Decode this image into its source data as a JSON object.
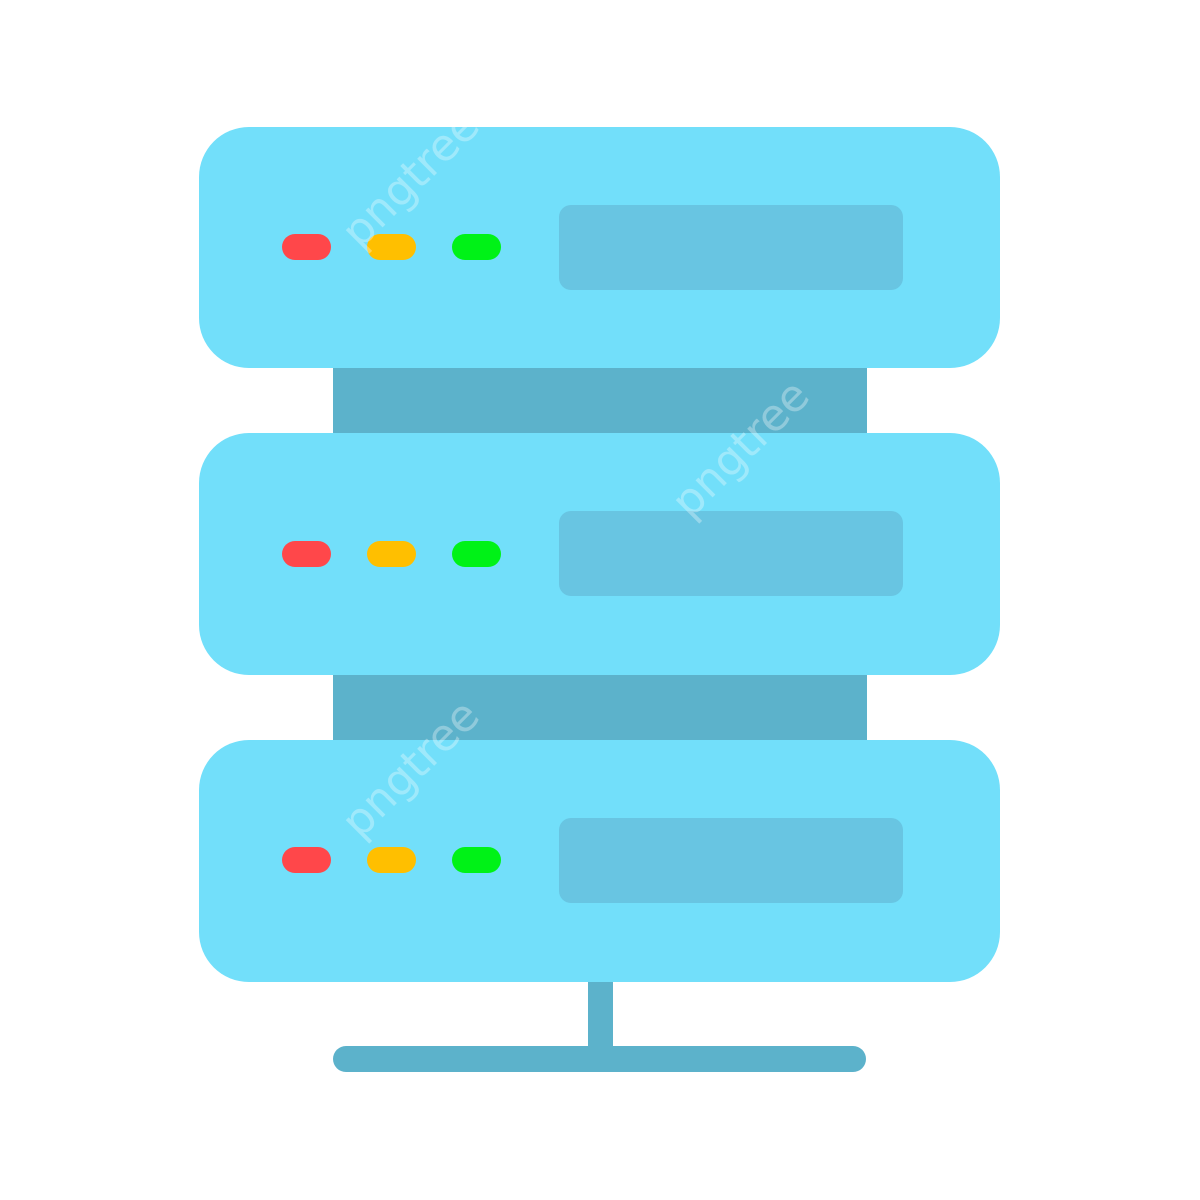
{
  "icon": {
    "name": "server-rack-icon",
    "colors": {
      "background": "#ffffff",
      "unit_body": "#72dffa",
      "display_panel": "#68c5e2",
      "spine": "#5cb2cb",
      "stand": "#5cb2cb",
      "led_red": "#ff474a",
      "led_amber": "#ffbf00",
      "led_green": "#00f217"
    },
    "units": [
      {
        "name": "server-unit-top",
        "leds": [
          "led_red",
          "led_amber",
          "led_green"
        ]
      },
      {
        "name": "server-unit-middle",
        "leds": [
          "led_red",
          "led_amber",
          "led_green"
        ]
      },
      {
        "name": "server-unit-bottom",
        "leds": [
          "led_red",
          "led_amber",
          "led_green"
        ]
      }
    ]
  },
  "watermark": {
    "text": "pngtree"
  }
}
